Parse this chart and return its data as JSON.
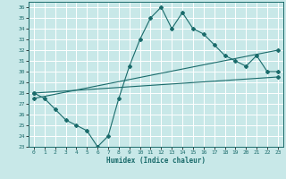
{
  "title": "",
  "xlabel": "Humidex (Indice chaleur)",
  "ylabel": "",
  "bg_color": "#c8e8e8",
  "grid_color": "#ffffff",
  "line_color": "#1a6b6b",
  "xlim": [
    -0.5,
    23.5
  ],
  "ylim": [
    23,
    36.5
  ],
  "yticks": [
    23,
    24,
    25,
    26,
    27,
    28,
    29,
    30,
    31,
    32,
    33,
    34,
    35,
    36
  ],
  "xticks": [
    0,
    1,
    2,
    3,
    4,
    5,
    6,
    7,
    8,
    9,
    10,
    11,
    12,
    13,
    14,
    15,
    16,
    17,
    18,
    19,
    20,
    21,
    22,
    23
  ],
  "series1_x": [
    0,
    1,
    2,
    3,
    4,
    5,
    6,
    7,
    8,
    9,
    10,
    11,
    12,
    13,
    14,
    15,
    16,
    17,
    18,
    19,
    20,
    21,
    22,
    23
  ],
  "series1_y": [
    28.0,
    27.5,
    26.5,
    25.5,
    25.0,
    24.5,
    23.0,
    24.0,
    27.5,
    30.5,
    33.0,
    35.0,
    36.0,
    34.0,
    35.5,
    34.0,
    33.5,
    32.5,
    31.5,
    31.0,
    30.5,
    31.5,
    30.0,
    30.0
  ],
  "series2_x": [
    0,
    23
  ],
  "series2_y": [
    28.0,
    29.5
  ],
  "series3_x": [
    0,
    23
  ],
  "series3_y": [
    27.5,
    32.0
  ],
  "series4_x": [
    0,
    23
  ],
  "series4_y": [
    28.0,
    29.8
  ]
}
